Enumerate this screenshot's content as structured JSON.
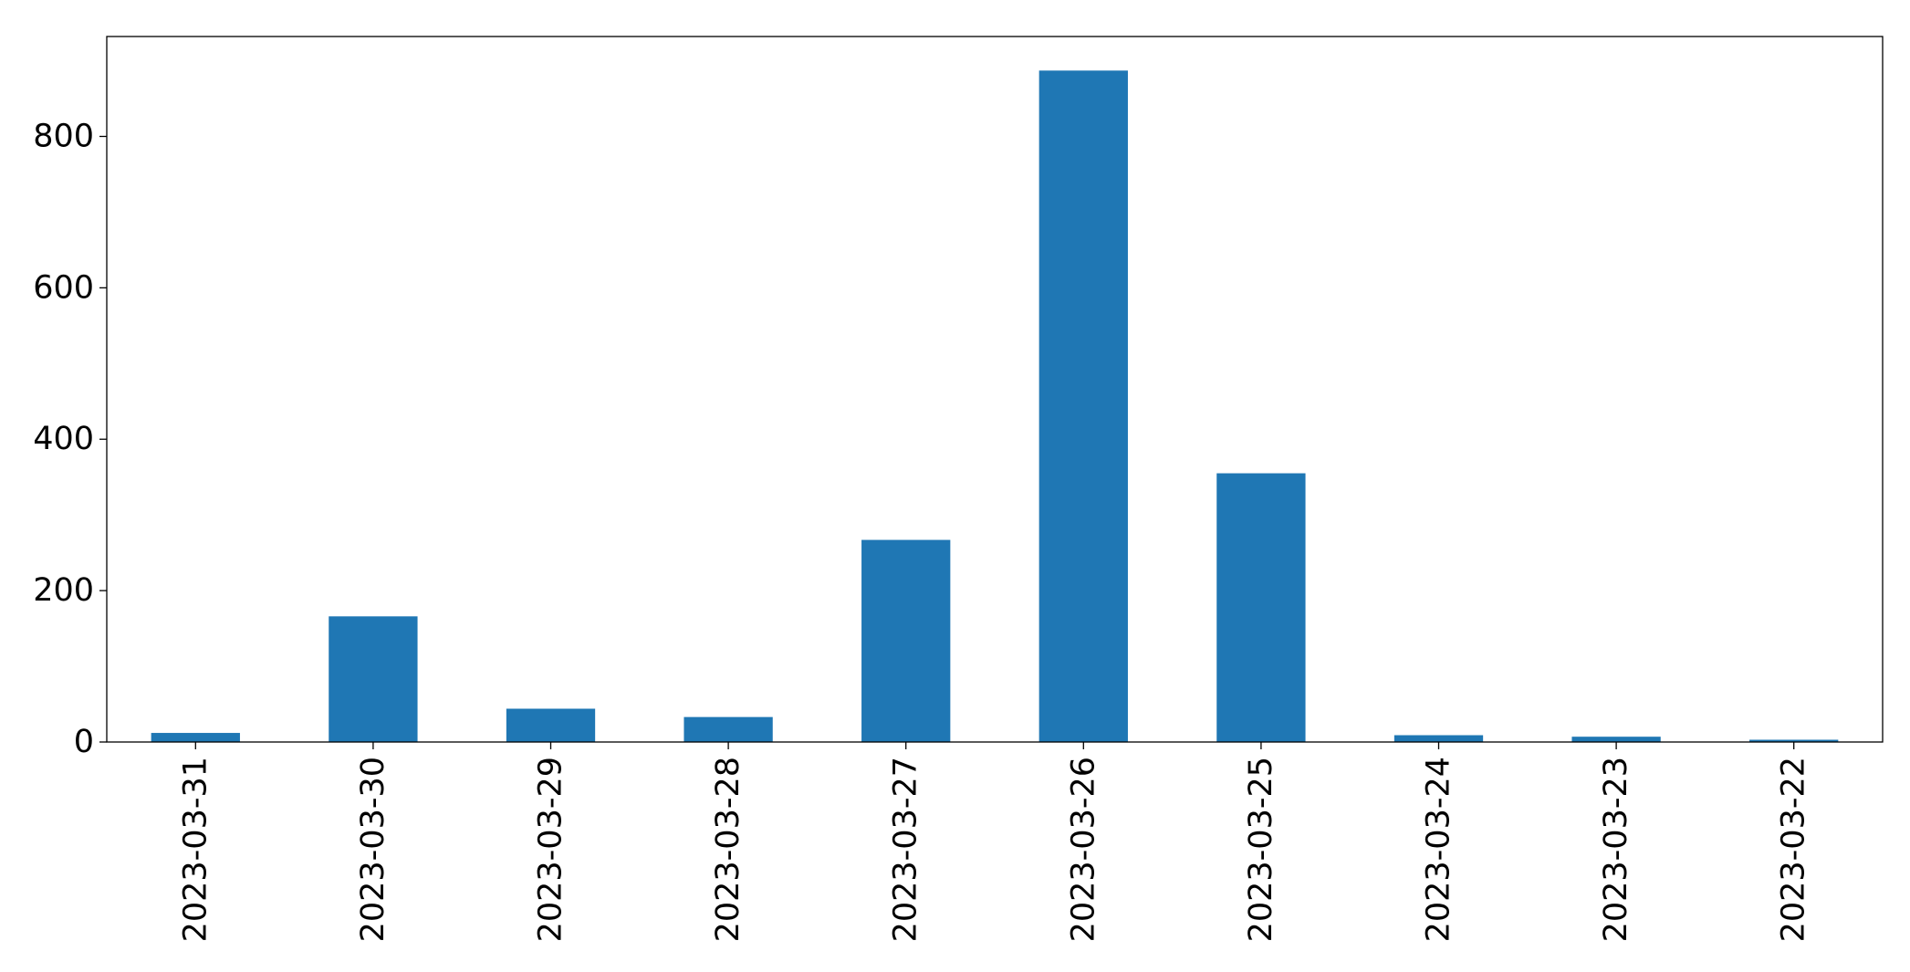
{
  "chart_data": {
    "type": "bar",
    "title": "",
    "xlabel": "",
    "ylabel": "",
    "categories": [
      "2023-03-31",
      "2023-03-30",
      "2023-03-29",
      "2023-03-28",
      "2023-03-27",
      "2023-03-26",
      "2023-03-25",
      "2023-03-24",
      "2023-03-23",
      "2023-03-22"
    ],
    "values": [
      12,
      166,
      44,
      33,
      267,
      887,
      355,
      9,
      7,
      3
    ],
    "ylim": [
      0,
      932
    ],
    "yticks": [
      0,
      200,
      400,
      600,
      800
    ],
    "ytick_labels": [
      "0",
      "200",
      "400",
      "600",
      "800"
    ],
    "bar_color": "#1f77b4",
    "grid": false,
    "legend": "none"
  }
}
